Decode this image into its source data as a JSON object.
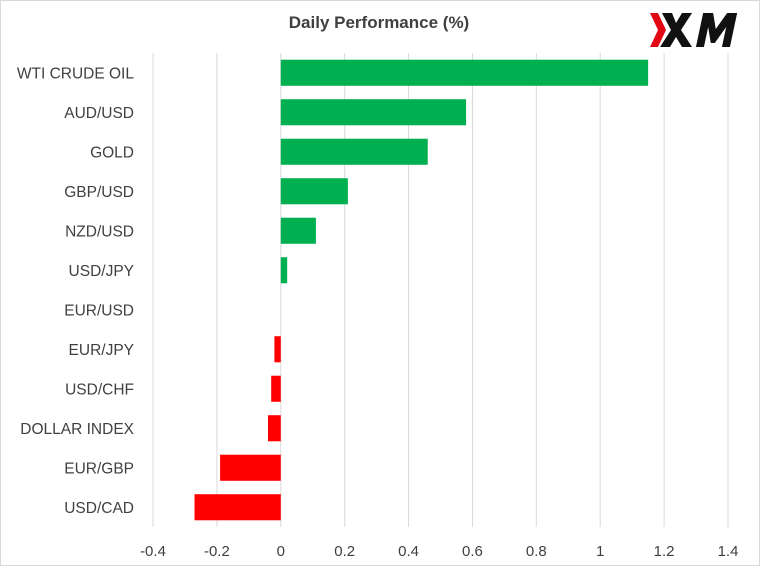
{
  "chart_data": {
    "type": "bar",
    "orientation": "horizontal",
    "title": "Daily Performance (%)",
    "categories": [
      "WTI CRUDE OIL",
      "AUD/USD",
      "GOLD",
      "GBP/USD",
      "NZD/USD",
      "USD/JPY",
      "EUR/USD",
      "EUR/JPY",
      "USD/CHF",
      "DOLLAR INDEX",
      "EUR/GBP",
      "USD/CAD"
    ],
    "values": [
      1.15,
      0.58,
      0.46,
      0.21,
      0.11,
      0.02,
      0.0,
      -0.02,
      -0.03,
      -0.04,
      -0.19,
      -0.27
    ],
    "xlim": [
      -0.4,
      1.4
    ],
    "xticks": [
      "-0.4",
      "-0.2",
      "0",
      "0.2",
      "0.4",
      "0.6",
      "0.8",
      "1",
      "1.2",
      "1.4"
    ],
    "xtick_values": [
      -0.4,
      -0.2,
      0,
      0.2,
      0.4,
      0.6,
      0.8,
      1.0,
      1.2,
      1.4
    ],
    "grid": "vertical",
    "colors": {
      "positive": "#00b050",
      "negative": "#ff0000",
      "grid": "#d9d9d9",
      "text": "#404040"
    }
  },
  "logo": {
    "text": "XM",
    "icon": "xm-logo-icon",
    "accent": "#e30613"
  }
}
